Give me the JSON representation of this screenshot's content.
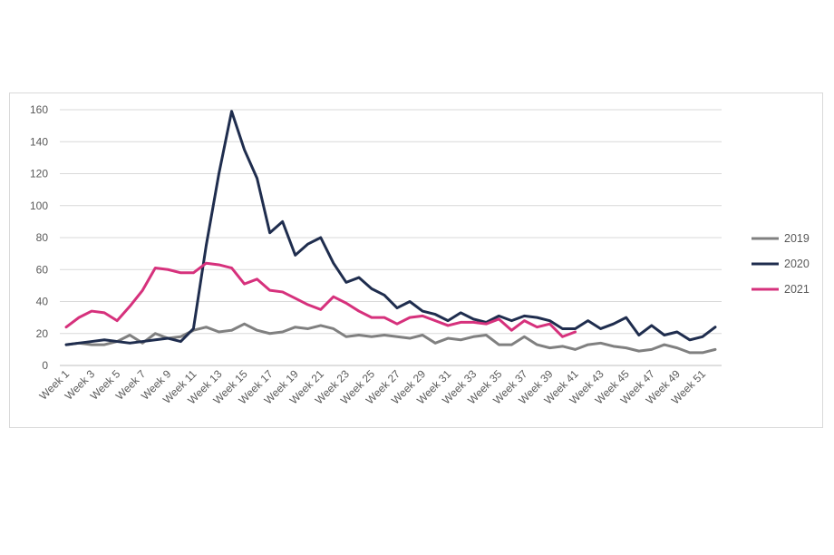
{
  "chart_data": {
    "type": "line",
    "title": "",
    "xlabel": "",
    "ylabel": "",
    "ylim": [
      0,
      160
    ],
    "yticks": [
      0,
      20,
      40,
      60,
      80,
      100,
      120,
      140,
      160
    ],
    "grid": true,
    "legend_position": "right",
    "categories": [
      "Week 1",
      "Week 2",
      "Week 3",
      "Week 4",
      "Week 5",
      "Week 6",
      "Week 7",
      "Week 8",
      "Week 9",
      "Week 10",
      "Week 11",
      "Week 12",
      "Week 13",
      "Week 14",
      "Week 15",
      "Week 16",
      "Week 17",
      "Week 18",
      "Week 19",
      "Week 20",
      "Week 21",
      "Week 22",
      "Week 23",
      "Week 24",
      "Week 25",
      "Week 26",
      "Week 27",
      "Week 28",
      "Week 29",
      "Week 30",
      "Week 31",
      "Week 32",
      "Week 33",
      "Week 34",
      "Week 35",
      "Week 36",
      "Week 37",
      "Week 38",
      "Week 39",
      "Week 40",
      "Week 41",
      "Week 42",
      "Week 43",
      "Week 44",
      "Week 45",
      "Week 46",
      "Week 47",
      "Week 48",
      "Week 49",
      "Week 50",
      "Week 51",
      "Week 52"
    ],
    "tick_labels": [
      "Week 1",
      "Week 3",
      "Week 5",
      "Week 7",
      "Week 9",
      "Week 11",
      "Week 13",
      "Week 15",
      "Week 17",
      "Week 19",
      "Week 21",
      "Week 23",
      "Week 25",
      "Week 27",
      "Week 29",
      "Week 31",
      "Week 33",
      "Week 35",
      "Week 37",
      "Week 39",
      "Week 41",
      "Week 43",
      "Week 45",
      "Week 47",
      "Week 49",
      "Week 51"
    ],
    "series": [
      {
        "name": "2019",
        "color": "#808080",
        "values": [
          13,
          14,
          13,
          13,
          15,
          19,
          14,
          20,
          17,
          18,
          22,
          24,
          21,
          22,
          26,
          22,
          20,
          21,
          24,
          23,
          25,
          23,
          18,
          19,
          18,
          19,
          18,
          17,
          19,
          14,
          17,
          16,
          18,
          19,
          13,
          13,
          18,
          13,
          11,
          12,
          10,
          13,
          14,
          12,
          11,
          9,
          10,
          13,
          11,
          8,
          8,
          10
        ]
      },
      {
        "name": "2020",
        "color": "#1f2d4e",
        "values": [
          13,
          14,
          15,
          16,
          15,
          14,
          15,
          16,
          17,
          15,
          23,
          75,
          120,
          159,
          135,
          117,
          83,
          90,
          69,
          76,
          80,
          64,
          52,
          55,
          48,
          44,
          36,
          40,
          34,
          32,
          28,
          33,
          29,
          27,
          31,
          28,
          31,
          30,
          28,
          23,
          23,
          28,
          23,
          26,
          30,
          19,
          25,
          19,
          21,
          16,
          18,
          24
        ]
      },
      {
        "name": "2021",
        "color": "#d6317c",
        "values": [
          24,
          30,
          34,
          33,
          28,
          37,
          47,
          61,
          60,
          58,
          58,
          64,
          63,
          61,
          51,
          54,
          47,
          46,
          42,
          38,
          35,
          43,
          39,
          34,
          30,
          30,
          26,
          30,
          31,
          28,
          25,
          27,
          27,
          26,
          29,
          22,
          28,
          24,
          26,
          18,
          21,
          null,
          null,
          null,
          null,
          null,
          null,
          null,
          null,
          null,
          null,
          null
        ]
      }
    ]
  }
}
